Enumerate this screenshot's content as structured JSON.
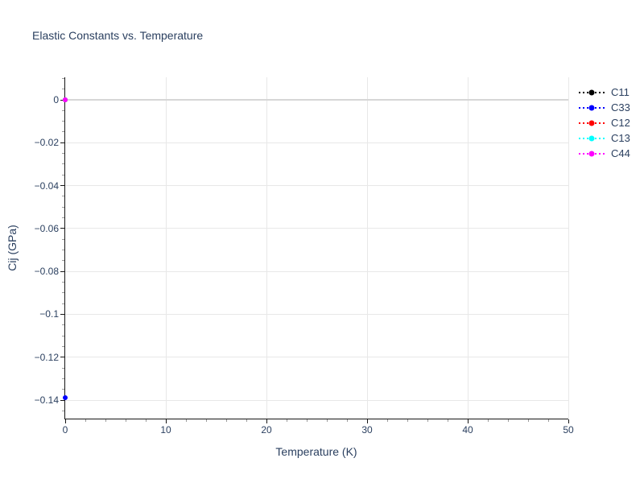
{
  "page": {
    "background": "#ffffff"
  },
  "colors": {
    "text": "#2a3f5f",
    "gridline": "#e8e8e8",
    "zeroline": "#d6d6d6",
    "axis_line": "#161616",
    "major_tick": "#161616",
    "minor_tick": "#9a9a9a"
  },
  "chart_data": {
    "type": "scatter",
    "title": "Elastic Constants vs. Temperature",
    "xlabel": "Temperature (K)",
    "ylabel": "Cij (GPa)",
    "xlim": [
      0,
      50
    ],
    "ylim": [
      -0.149,
      0.011
    ],
    "grid": true,
    "legend_position": "right",
    "x_major_ticks": [
      0,
      10,
      20,
      30,
      40,
      50
    ],
    "x_tick_labels": [
      "0",
      "10",
      "20",
      "30",
      "40",
      "50"
    ],
    "x_minor_step": 2,
    "y_major_ticks": [
      0,
      -0.02,
      -0.04,
      -0.06,
      -0.08,
      -0.1,
      -0.12,
      -0.14
    ],
    "y_tick_labels": [
      "0",
      "−0.02",
      "−0.04",
      "−0.06",
      "−0.08",
      "−0.1",
      "−0.12",
      "−0.14"
    ],
    "y_minor_step": 0.005,
    "marker_style": "dotted-line-with-circle",
    "series": [
      {
        "name": "C11",
        "color": "#000000",
        "x": [
          0
        ],
        "y": [
          0
        ]
      },
      {
        "name": "C33",
        "color": "#0000ff",
        "x": [
          0
        ],
        "y": [
          -0.139
        ]
      },
      {
        "name": "C12",
        "color": "#ff0000",
        "x": [
          0
        ],
        "y": [
          0
        ]
      },
      {
        "name": "C13",
        "color": "#00ffff",
        "x": [
          0
        ],
        "y": [
          0
        ]
      },
      {
        "name": "C44",
        "color": "#ff00ff",
        "x": [
          0
        ],
        "y": [
          0
        ]
      }
    ]
  }
}
